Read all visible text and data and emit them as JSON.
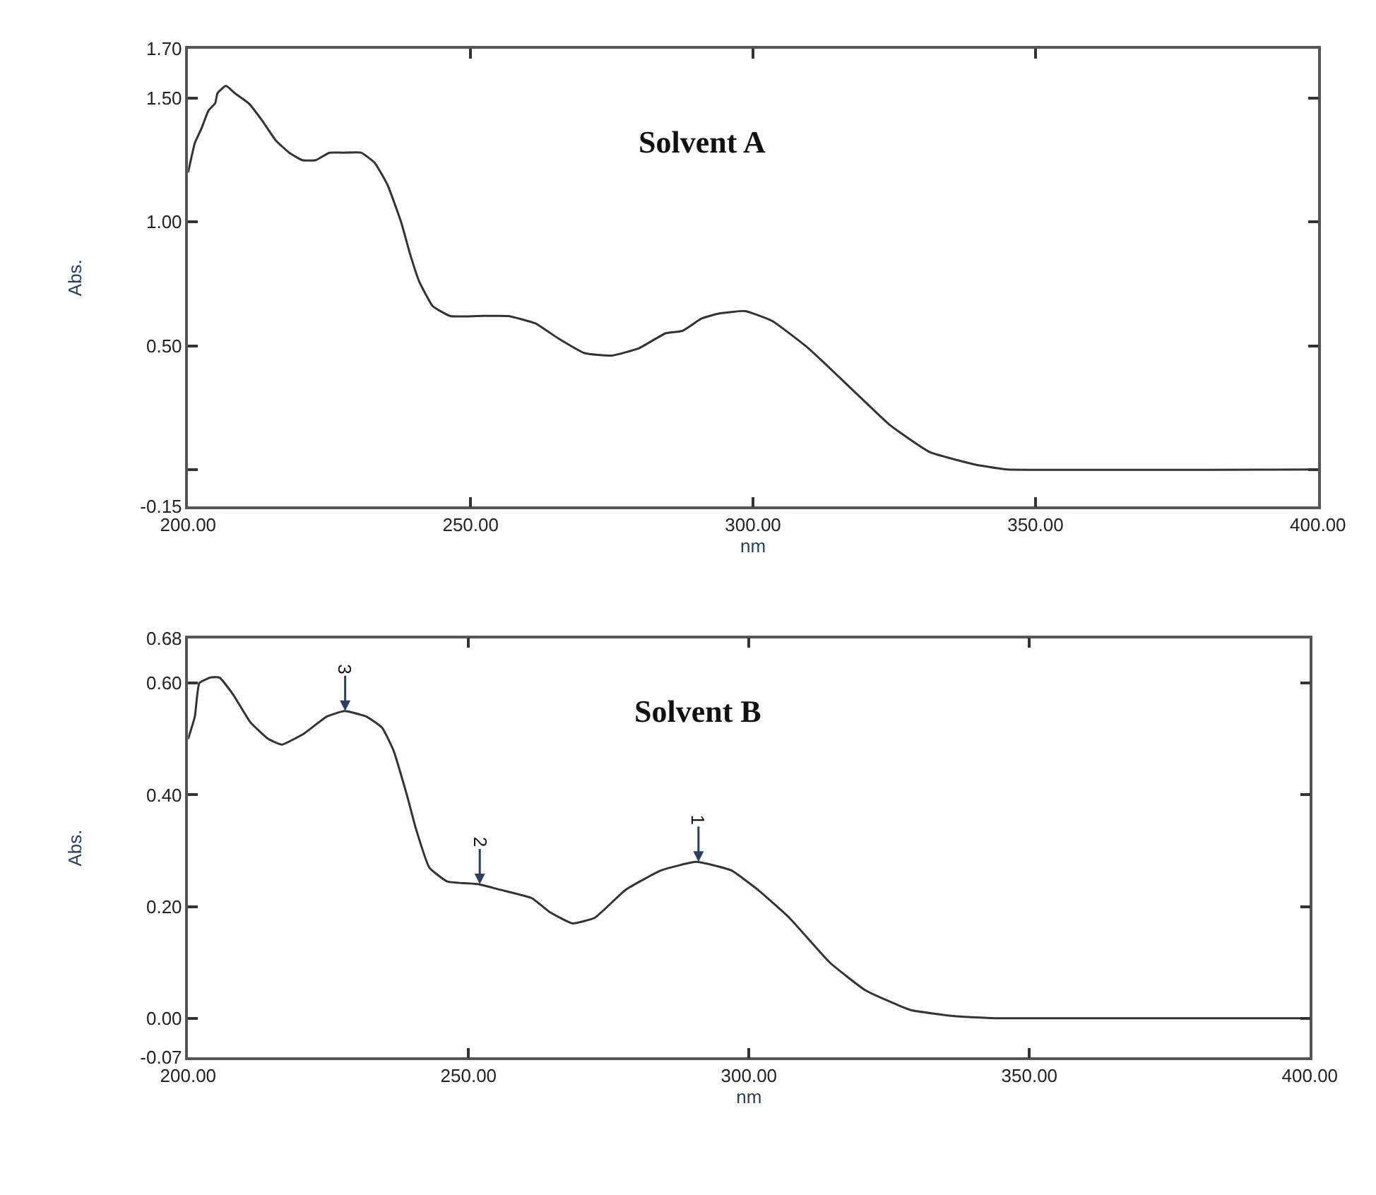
{
  "chart_data": [
    {
      "type": "line",
      "title": "Solvent A",
      "xlabel": "nm",
      "ylabel": "Abs.",
      "x": [
        200,
        201.2,
        202.4,
        203.6,
        204.8,
        205.2,
        206.7,
        208.3,
        210.7,
        213.1,
        215.5,
        217.9,
        220.2,
        222.6,
        225,
        227.4,
        230.6,
        233,
        235.3,
        237.7,
        239.3,
        240.9,
        243.3,
        246.4,
        251.2,
        256.7,
        261.5,
        265.5,
        270.2,
        275,
        279.8,
        284.5,
        287.5,
        290.9,
        293.9,
        298.6,
        303.4,
        309.8,
        317.7,
        324.2,
        331.3,
        339.3,
        343.3,
        345,
        400
      ],
      "series": [
        {
          "color": "#333333",
          "values": [
            1.2,
            1.32,
            1.38,
            1.45,
            1.48,
            1.52,
            1.55,
            1.52,
            1.48,
            1.41,
            1.33,
            1.28,
            1.25,
            1.25,
            1.28,
            1.28,
            1.28,
            1.24,
            1.15,
            1.0,
            0.87,
            0.76,
            0.66,
            0.62,
            0.62,
            0.62,
            0.59,
            0.53,
            0.47,
            0.46,
            0.49,
            0.55,
            0.56,
            0.61,
            0.63,
            0.64,
            0.6,
            0.49,
            0.32,
            0.18,
            0.07,
            0.02,
            0.005,
            0.0,
            0.0
          ]
        }
      ],
      "xlim": [
        200,
        400
      ],
      "ylim": [
        -0.15,
        1.7
      ],
      "xticks": [
        {
          "value": 200,
          "label": "200.00"
        },
        {
          "value": 250,
          "label": "250.00"
        },
        {
          "value": 300,
          "label": "300.00"
        },
        {
          "value": 350,
          "label": "350.00"
        },
        {
          "value": 400,
          "label": "400.00"
        }
      ],
      "yticks": [
        {
          "value": -0.15,
          "label": "-0.15"
        },
        {
          "value": 0,
          "label": null
        },
        {
          "value": 0.5,
          "label": "0.50"
        },
        {
          "value": 1.0,
          "label": "1.00"
        },
        {
          "value": 1.5,
          "label": "1.50"
        },
        {
          "value": 1.7,
          "label": "1.70"
        }
      ]
    },
    {
      "type": "line",
      "title": "Solvent B",
      "xlabel": "nm",
      "ylabel": "Abs.",
      "x": [
        200,
        201.2,
        202,
        204,
        205.6,
        208,
        211.1,
        214.3,
        216.7,
        220.7,
        224.7,
        227.9,
        231.8,
        234.6,
        236.6,
        239,
        240.6,
        243,
        246.2,
        251.8,
        255.7,
        261.3,
        264.5,
        268.5,
        272.5,
        278,
        284.4,
        290.6,
        296.8,
        301.6,
        307.2,
        314.4,
        320.8,
        328.8,
        336.7,
        344.7,
        400
      ],
      "series": [
        {
          "color": "#333333",
          "values": [
            0.5,
            0.54,
            0.6,
            0.61,
            0.61,
            0.58,
            0.53,
            0.5,
            0.49,
            0.51,
            0.54,
            0.55,
            0.54,
            0.52,
            0.48,
            0.4,
            0.34,
            0.27,
            0.245,
            0.24,
            0.23,
            0.215,
            0.19,
            0.17,
            0.18,
            0.23,
            0.265,
            0.28,
            0.265,
            0.23,
            0.18,
            0.1,
            0.05,
            0.015,
            0.004,
            0.0,
            0.0
          ]
        }
      ],
      "xlim": [
        200,
        400
      ],
      "ylim": [
        -0.07,
        0.68
      ],
      "xticks": [
        {
          "value": 200,
          "label": "200.00"
        },
        {
          "value": 250,
          "label": "250.00"
        },
        {
          "value": 300,
          "label": "300.00"
        },
        {
          "value": 350,
          "label": "350.00"
        },
        {
          "value": 400,
          "label": "400.00"
        }
      ],
      "yticks": [
        {
          "value": -0.07,
          "label": "-0.07"
        },
        {
          "value": 0,
          "label": "0.00"
        },
        {
          "value": 0.2,
          "label": "0.20"
        },
        {
          "value": 0.4,
          "label": "0.40"
        },
        {
          "value": 0.6,
          "label": "0.60"
        },
        {
          "value": 0.68,
          "label": "0.68"
        }
      ],
      "annotations": [
        {
          "text": "3",
          "x": 228,
          "y": 0.55
        },
        {
          "text": "2",
          "x": 252,
          "y": 0.24
        },
        {
          "text": "1",
          "x": 291,
          "y": 0.28
        }
      ]
    }
  ]
}
